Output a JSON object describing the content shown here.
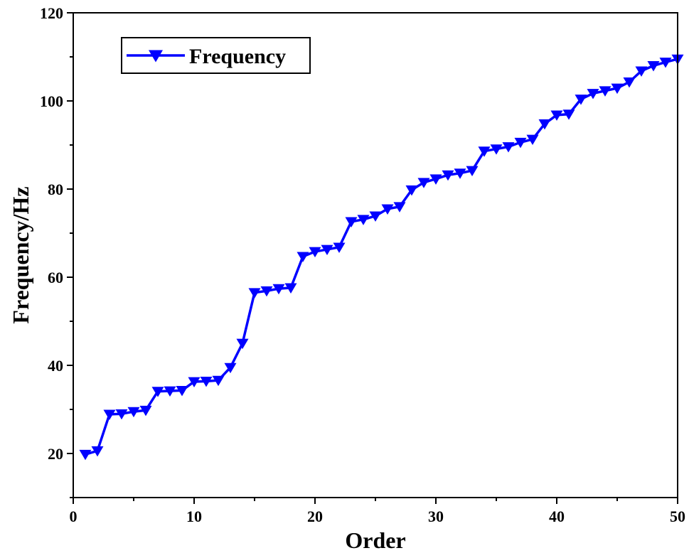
{
  "chart_data": {
    "type": "line",
    "title": "",
    "xlabel": "Order",
    "ylabel": "Frequency/Hz",
    "xlim": [
      0,
      50
    ],
    "ylim": [
      10,
      120
    ],
    "x_ticks": [
      0,
      10,
      20,
      30,
      40,
      50
    ],
    "y_ticks": [
      20,
      40,
      60,
      80,
      100,
      120
    ],
    "grid": false,
    "legend_position": "top-left",
    "series": [
      {
        "name": "Frequency",
        "color": "#0000FF",
        "marker": "triangle-down",
        "x": [
          1,
          2,
          3,
          4,
          5,
          6,
          7,
          8,
          9,
          10,
          11,
          12,
          13,
          14,
          15,
          16,
          17,
          18,
          19,
          20,
          21,
          22,
          23,
          24,
          25,
          26,
          27,
          28,
          29,
          30,
          31,
          32,
          33,
          34,
          35,
          36,
          37,
          38,
          39,
          40,
          41,
          42,
          43,
          44,
          45,
          46,
          47,
          48,
          49,
          50
        ],
        "values": [
          19.8,
          20.6,
          28.9,
          29.0,
          29.5,
          29.8,
          34.1,
          34.2,
          34.3,
          36.3,
          36.4,
          36.6,
          39.5,
          45.0,
          56.5,
          56.9,
          57.4,
          57.6,
          64.7,
          65.8,
          66.3,
          66.8,
          72.6,
          73.1,
          73.9,
          75.5,
          76.0,
          79.8,
          81.5,
          82.3,
          83.2,
          83.6,
          84.2,
          88.6,
          89.1,
          89.6,
          90.6,
          91.3,
          94.8,
          96.8,
          97.0,
          100.4,
          101.7,
          102.3,
          102.9,
          104.3,
          106.8,
          108.0,
          108.8,
          109.5
        ]
      }
    ]
  }
}
